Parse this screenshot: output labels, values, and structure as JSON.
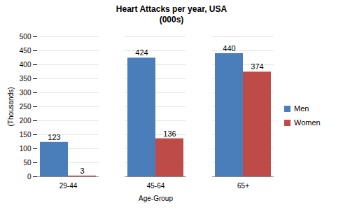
{
  "chart_data": {
    "type": "bar",
    "title": "Heart Attacks per year, USA",
    "subtitle": "(000s)",
    "x_label": "Age-Group",
    "y_label": "(Thousands)",
    "categories": [
      "29-44",
      "45-64",
      "65+"
    ],
    "series": [
      {
        "name": "Men",
        "color": "#4a7ebb",
        "values": [
          123,
          424,
          440
        ]
      },
      {
        "name": "Women",
        "color": "#be4b48",
        "values": [
          3,
          136,
          374
        ]
      }
    ],
    "ylim": [
      0,
      500
    ],
    "yticks": [
      0,
      50,
      100,
      150,
      200,
      250,
      300,
      350,
      400,
      450,
      500
    ],
    "grid": true,
    "legend": "right",
    "data_labels": true
  }
}
